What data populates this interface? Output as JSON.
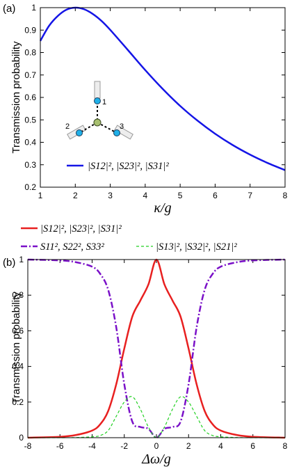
{
  "chart_data": [
    {
      "type": "line",
      "panel_label": "(a)",
      "xlabel": "κ/g",
      "ylabel": "Transmission probability",
      "xlim": [
        1,
        8
      ],
      "ylim": [
        0.2,
        1
      ],
      "xticks": [
        "1",
        "2",
        "3",
        "4",
        "5",
        "6",
        "7",
        "8"
      ],
      "yticks": [
        "0.2",
        "0.3",
        "0.4",
        "0.5",
        "0.6",
        "0.7",
        "0.8",
        "0.9",
        "1"
      ],
      "grid": false,
      "legend_position": "lower-left",
      "series": [
        {
          "name": "|S12|², |S23|², |S31|²",
          "color": "#1515e6",
          "style": "solid",
          "x": [
            1,
            1.25,
            1.5,
            1.75,
            2,
            2.25,
            2.5,
            2.75,
            3,
            3.5,
            4,
            4.5,
            5,
            5.5,
            6,
            6.5,
            7,
            7.5,
            8
          ],
          "y": [
            0.852,
            0.919,
            0.963,
            0.991,
            1.0,
            0.993,
            0.972,
            0.941,
            0.901,
            0.812,
            0.722,
            0.638,
            0.562,
            0.496,
            0.438,
            0.388,
            0.345,
            0.308,
            0.276
          ]
        }
      ],
      "inset": {
        "icon": "three-port-junction-diagram",
        "node_labels": [
          "1",
          "2",
          "3"
        ]
      }
    },
    {
      "type": "line",
      "panel_label": "(b)",
      "xlabel": "Δω/g",
      "ylabel": "Transmission probability",
      "xlim": [
        -8,
        8
      ],
      "ylim": [
        0,
        1
      ],
      "xticks": [
        "-8",
        "-6",
        "-4",
        "-2",
        "0",
        "2",
        "4",
        "6",
        "8"
      ],
      "yticks": [
        "0",
        "0.2",
        "0.4",
        "0.6",
        "0.8",
        "1"
      ],
      "grid": false,
      "legend_position": "top",
      "series": [
        {
          "name": "|S12|², |S23|², |S31|²",
          "color": "#e82020",
          "style": "solid",
          "x": [
            -8,
            -6,
            -5,
            -4,
            -3.5,
            -3,
            -2.5,
            -2,
            -1.5,
            -1,
            -0.5,
            0,
            0.5,
            1,
            1.5,
            2,
            2.5,
            3,
            3.5,
            4,
            5,
            6,
            8
          ],
          "y": [
            0.0,
            0.005,
            0.015,
            0.04,
            0.075,
            0.15,
            0.3,
            0.5,
            0.68,
            0.77,
            0.86,
            1.0,
            0.86,
            0.77,
            0.68,
            0.5,
            0.3,
            0.15,
            0.075,
            0.04,
            0.015,
            0.005,
            0.0
          ]
        },
        {
          "name": "S11², S22², S33²",
          "color": "#7a10c8",
          "style": "dashdot",
          "x": [
            -8,
            -6,
            -5,
            -4,
            -3.5,
            -3,
            -2.5,
            -2,
            -1.5,
            -1,
            -0.5,
            0,
            0.5,
            1,
            1.5,
            2,
            2.5,
            3,
            3.5,
            4,
            5,
            6,
            8
          ],
          "y": [
            1.0,
            0.995,
            0.985,
            0.96,
            0.92,
            0.83,
            0.62,
            0.3,
            0.09,
            0.06,
            0.05,
            0.0,
            0.05,
            0.06,
            0.09,
            0.3,
            0.62,
            0.83,
            0.92,
            0.96,
            0.985,
            0.995,
            1.0
          ]
        },
        {
          "name": "|S13|², |S32|², |S21|²",
          "color": "#22d022",
          "style": "dashed",
          "x": [
            -8,
            -6,
            -5,
            -4,
            -3.5,
            -3,
            -2.5,
            -2,
            -1.5,
            -1,
            -0.5,
            0,
            0.5,
            1,
            1.5,
            2,
            2.5,
            3,
            3.5,
            4,
            5,
            6,
            8
          ],
          "y": [
            0.0,
            0.0,
            0.001,
            0.005,
            0.012,
            0.04,
            0.12,
            0.2,
            0.23,
            0.16,
            0.06,
            0.0,
            0.06,
            0.16,
            0.23,
            0.2,
            0.12,
            0.04,
            0.012,
            0.005,
            0.001,
            0.0,
            0.0
          ]
        }
      ]
    }
  ]
}
